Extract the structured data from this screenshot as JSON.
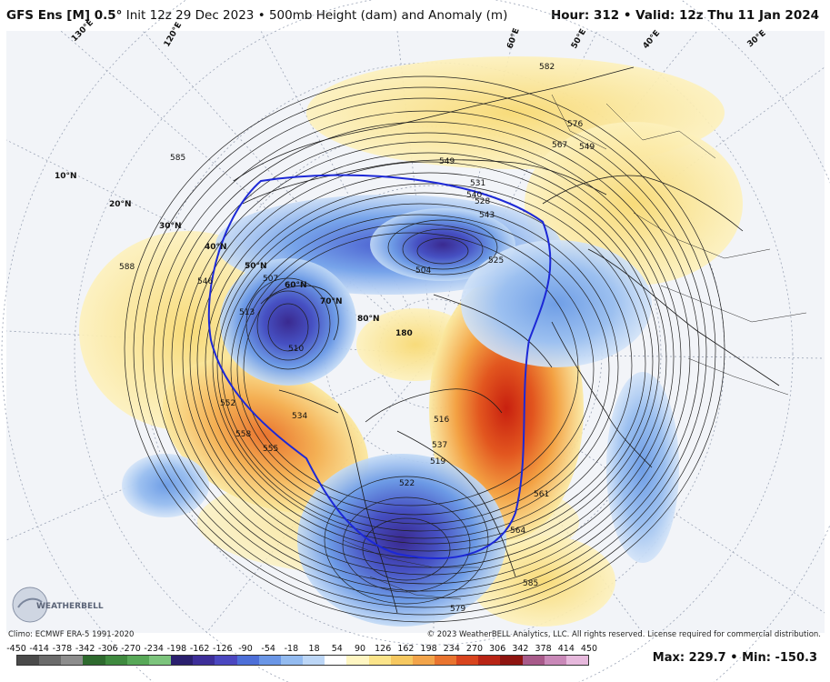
{
  "header": {
    "model": "GFS Ens [M] 0.5°",
    "init": " Init 12z 29 Dec 2023 • 500mb Height (dam) and Anomaly (m)",
    "hour_label": "Hour:",
    "hour": "312",
    "valid_label": "Valid:",
    "valid": "12z Thu 11 Jan 2024"
  },
  "footer": {
    "climo": "Climo: ECMWF ERA-5 1991-2020",
    "copyright": "© 2023 WeatherBELL Analytics, LLC. All rights reserved. License required for commercial distribution.",
    "max_label": "Max:",
    "max": "229.7",
    "min_label": "Min:",
    "min": "-150.3",
    "logo_text": "WEATHERBELL"
  },
  "colorbar": {
    "ticks": [
      "-450",
      "-414",
      "-378",
      "-342",
      "-306",
      "-270",
      "-234",
      "-198",
      "-162",
      "-126",
      "-90",
      "-54",
      "-18",
      "18",
      "54",
      "90",
      "126",
      "162",
      "198",
      "234",
      "270",
      "306",
      "342",
      "378",
      "414",
      "450"
    ],
    "colors": [
      "#4a4a4a",
      "#6b6b6b",
      "#8d8d8d",
      "#2e6a2e",
      "#3f8a3f",
      "#58a858",
      "#7cc47c",
      "#2a1f6e",
      "#3d2e99",
      "#4b47c0",
      "#4d6fd8",
      "#6a96e6",
      "#93bbf0",
      "#bcd6f6",
      "#ffffff",
      "#fff6c2",
      "#fbe48a",
      "#f6c860",
      "#f2a44a",
      "#e9742f",
      "#d8441e",
      "#b82415",
      "#8e1410",
      "#a85a8a",
      "#c988b8",
      "#e6b8dc"
    ]
  },
  "map_labels": {
    "contours": [
      "585",
      "588",
      "546",
      "549",
      "552",
      "555",
      "558",
      "534",
      "513",
      "507",
      "510",
      "504",
      "516",
      "522",
      "528",
      "531",
      "540",
      "549",
      "567",
      "576",
      "582",
      "585",
      "579",
      "561",
      "564",
      "537",
      "519",
      "525",
      "543"
    ],
    "lat_labels": [
      "10°N",
      "20°N",
      "30°N",
      "40°N",
      "50°N",
      "60°N",
      "70°N",
      "80°N"
    ],
    "lon_labels": [
      "130°E",
      "120°E",
      "60°E",
      "50°E",
      "40°E",
      "30°E"
    ],
    "pole_label": "180"
  }
}
